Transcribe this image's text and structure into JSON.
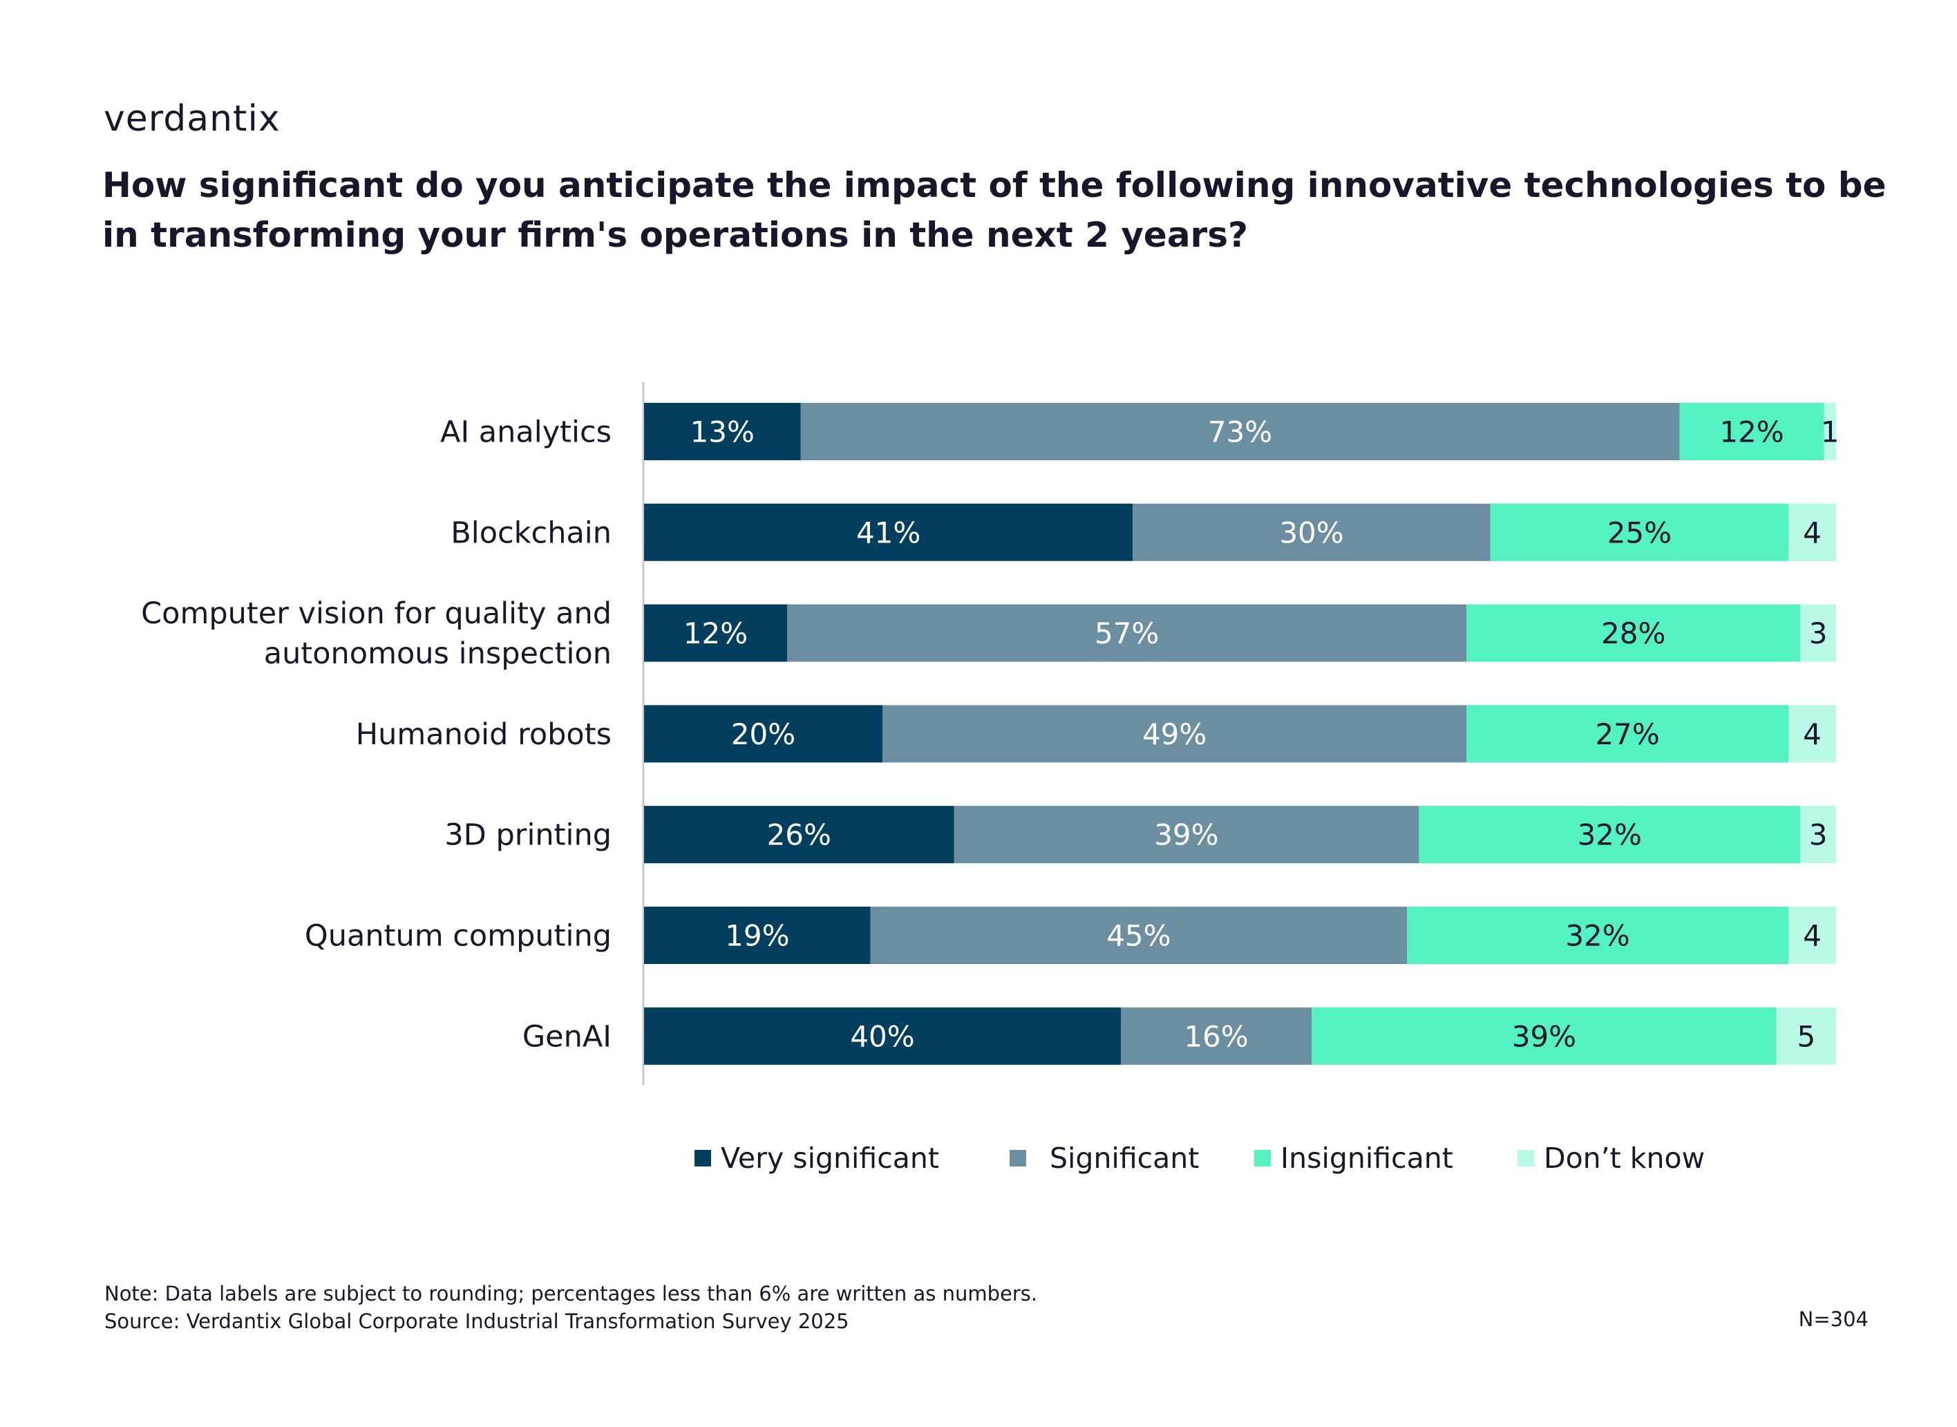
{
  "brand": {
    "logo_text": "verdantix"
  },
  "title": {
    "line1": "How significant do you anticipate the impact of the following innovative technologies to be",
    "line2": "in transforming your firm's operations in the next 2 years?"
  },
  "chart_data": {
    "type": "bar",
    "orientation": "horizontal",
    "stacked": true,
    "categories": [
      [
        "AI analytics"
      ],
      [
        "Blockchain"
      ],
      [
        "Computer vision for quality and",
        "autonomous inspection"
      ],
      [
        "Humanoid robots"
      ],
      [
        "3D printing"
      ],
      [
        "Quantum computing"
      ],
      [
        "GenAI"
      ]
    ],
    "series": [
      {
        "name": "Very significant",
        "color": "#023f5f",
        "label_color": "#ffffff",
        "values": [
          13,
          41,
          12,
          20,
          26,
          19,
          40
        ],
        "labels": [
          "13%",
          "41%",
          "12%",
          "20%",
          "26%",
          "19%",
          "40%"
        ]
      },
      {
        "name": "Significant",
        "color": "#6b8fa1",
        "label_color": "#ffffff",
        "values": [
          73,
          30,
          57,
          49,
          39,
          45,
          16
        ],
        "labels": [
          "73%",
          "30%",
          "57%",
          "49%",
          "39%",
          "45%",
          "16%"
        ]
      },
      {
        "name": "Insignificant",
        "color": "#55f2c1",
        "label_color": "#17172b",
        "values": [
          12,
          25,
          28,
          27,
          32,
          32,
          39
        ],
        "labels": [
          "12%",
          "25%",
          "28%",
          "27%",
          "32%",
          "32%",
          "39%"
        ]
      },
      {
        "name": "Don’t know",
        "color": "#b8fae6",
        "label_color": "#17172b",
        "values": [
          1,
          4,
          3,
          4,
          3,
          4,
          5
        ],
        "labels": [
          "1",
          "4",
          "3",
          "4",
          "3",
          "4",
          "5"
        ]
      }
    ],
    "xlim": [
      0,
      100
    ],
    "grid": false,
    "legend_position": "bottom"
  },
  "footer": {
    "note": "Note: Data labels are subject to rounding; percentages less than 6% are written as numbers.",
    "source": "Source: Verdantix Global Corporate Industrial Transformation Survey 2025",
    "n": "N=304"
  }
}
